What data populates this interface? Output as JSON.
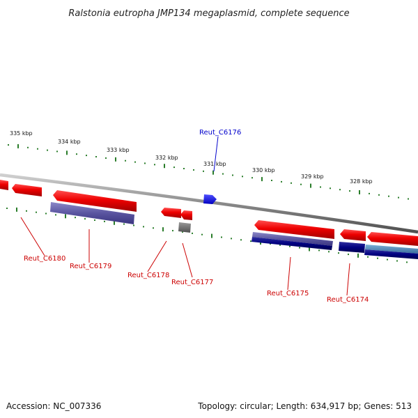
{
  "title": "Ralstonia eutropha JMP134 megaplasmid, complete sequence",
  "footer": {
    "accession": "Accession: NC_007336",
    "summary": "Topology: circular; Length: 634,917 bp; Genes: 513"
  },
  "colors": {
    "backbone": "#8a8a8a",
    "tick": "#2a7d2a",
    "gene_forward": "#e00000",
    "gene_reverse": "#e00000",
    "label_red": "#cc0000",
    "label_blue": "#0000cc",
    "cds_purple": "#5a55a0",
    "cds_navy": "#000080",
    "cds_steel": "#4682b4",
    "cds_gray": "#666666",
    "gene_blue": "#0000ff"
  },
  "ticks": [
    {
      "label": "335 kbp"
    },
    {
      "label": "334 kbp"
    },
    {
      "label": "333 kbp"
    },
    {
      "label": "332 kbp"
    },
    {
      "label": "331 kbp"
    },
    {
      "label": "330 kbp"
    },
    {
      "label": "329 kbp"
    },
    {
      "label": "328 kbp"
    }
  ],
  "genes": [
    {
      "name": "Reut_C6180",
      "strand": "reverse"
    },
    {
      "name": "Reut_C6179",
      "strand": "reverse"
    },
    {
      "name": "Reut_C6178",
      "strand": "reverse"
    },
    {
      "name": "Reut_C6177",
      "strand": "reverse"
    },
    {
      "name": "Reut_C6176",
      "strand": "forward"
    },
    {
      "name": "Reut_C6175",
      "strand": "reverse"
    },
    {
      "name": "Reut_C6174",
      "strand": "reverse"
    }
  ]
}
